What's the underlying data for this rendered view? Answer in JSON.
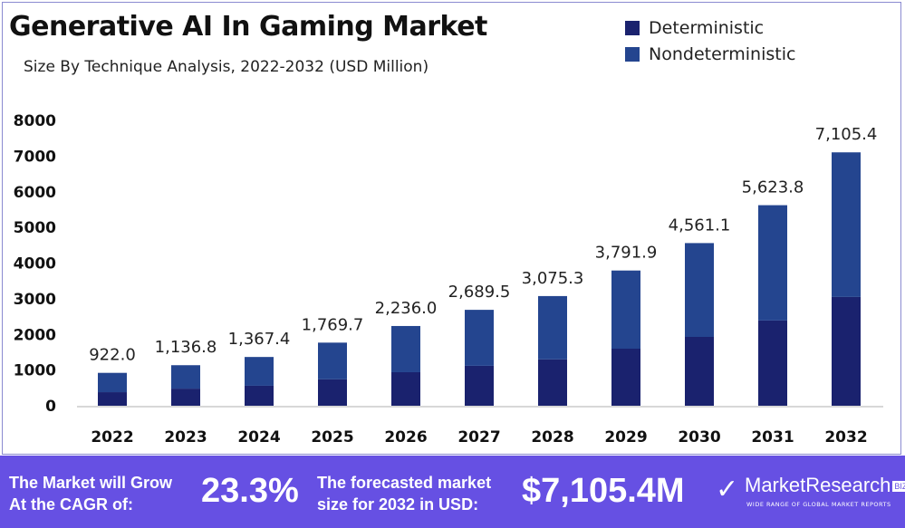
{
  "chart_data": {
    "type": "bar",
    "stacked": true,
    "title": "Generative AI In Gaming Market",
    "subtitle": "Size By Technique Analysis, 2022-2032 (USD Million)",
    "categories": [
      "2022",
      "2023",
      "2024",
      "2025",
      "2026",
      "2027",
      "2028",
      "2029",
      "2030",
      "2031",
      "2032"
    ],
    "totals": [
      922.0,
      1136.8,
      1367.4,
      1769.7,
      2236.0,
      2689.5,
      3075.3,
      3791.9,
      4561.1,
      5623.8,
      7105.4
    ],
    "total_labels": [
      "922.0",
      "1,136.8",
      "1,367.4",
      "1,769.7",
      "2,236.0",
      "2,689.5",
      "3,075.3",
      "3,791.9",
      "4,561.1",
      "5,623.8",
      "7,105.4"
    ],
    "series": [
      {
        "name": "Deterministic",
        "color": "#1a226e",
        "values": [
          380,
          480,
          560,
          740,
          940,
          1120,
          1300,
          1600,
          1930,
          2390,
          3050
        ]
      },
      {
        "name": "Nondeterministic",
        "color": "#24458f",
        "values": [
          542,
          656.8,
          807.4,
          1029.7,
          1296,
          1569.5,
          1775.3,
          2191.9,
          2631.1,
          3233.8,
          4055.4
        ]
      }
    ],
    "ylim": [
      0,
      8000
    ],
    "yticks": [
      "0",
      "1000",
      "2000",
      "3000",
      "4000",
      "5000",
      "6000",
      "7000",
      "8000"
    ],
    "grid": false,
    "legend_position": "top-right"
  },
  "footer": {
    "cagr_label_1": "The Market will Grow",
    "cagr_label_2": "At the CAGR of:",
    "cagr_value": "23.3%",
    "forecast_label_1": "The forecasted market",
    "forecast_label_2": "size for 2032 in USD:",
    "forecast_value": "$7,105.4M",
    "logo_text": "MarketResearch",
    "logo_badge": "BIZ",
    "logo_tagline": "WIDE RANGE OF GLOBAL MARKET REPORTS",
    "color": "#6650e3"
  }
}
